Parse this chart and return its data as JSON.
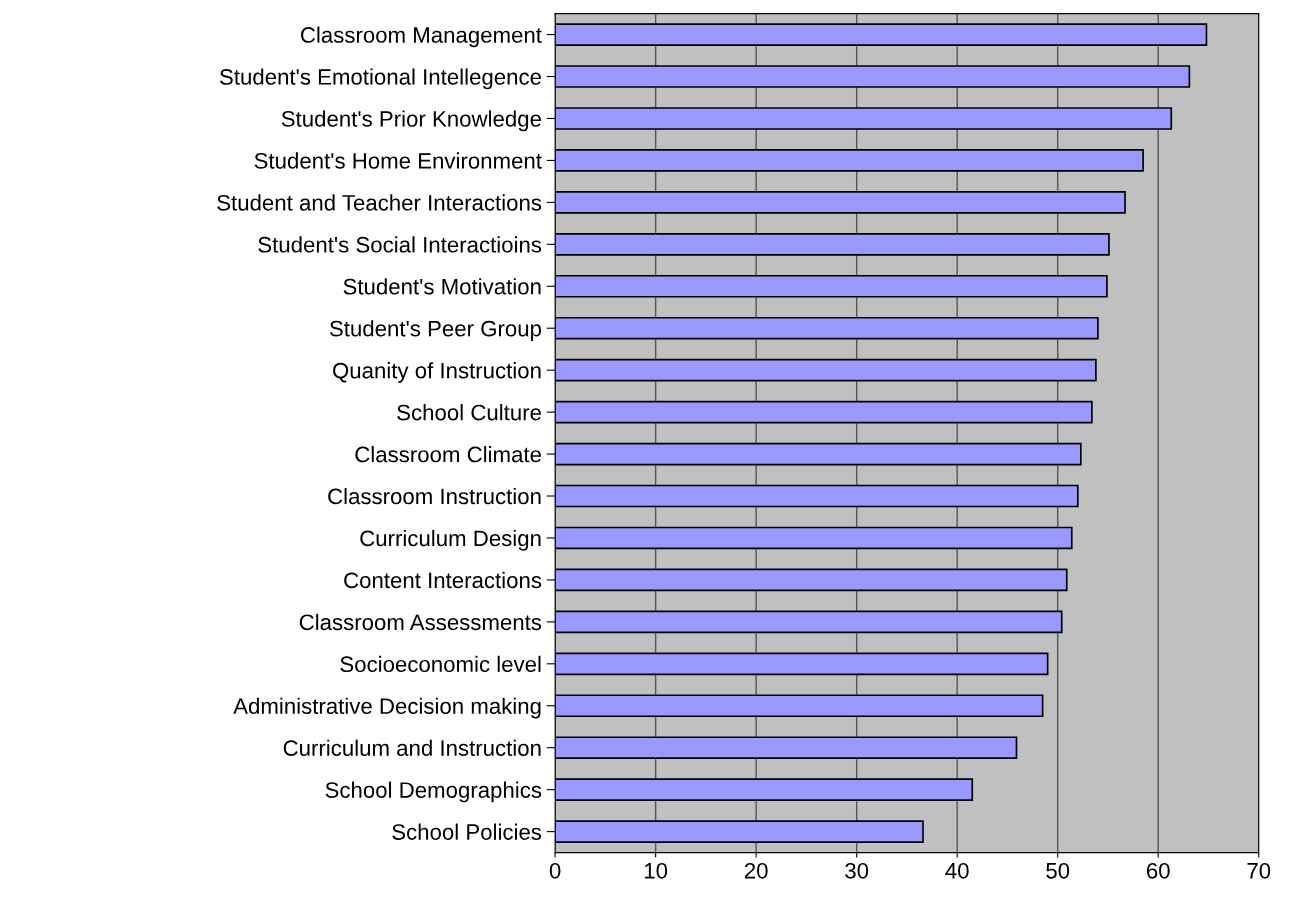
{
  "chart_data": {
    "type": "bar",
    "orientation": "horizontal",
    "categories": [
      "Classroom Management",
      "Student's Emotional Intellegence",
      "Student's Prior Knowledge",
      "Student's Home Environment",
      "Student and Teacher Interactions",
      "Student's Social Interactioins",
      "Student's Motivation",
      "Student's Peer Group",
      "Quanity of Instruction",
      "School Culture",
      "Classroom Climate",
      "Classroom Instruction",
      "Curriculum Design",
      "Content Interactions",
      "Classroom Assessments",
      "Socioeconomic level",
      "Administrative Decision making",
      "Curriculum and Instruction",
      "School Demographics",
      "School Policies"
    ],
    "values": [
      64.8,
      63.1,
      61.3,
      58.5,
      56.7,
      55.1,
      54.9,
      54.0,
      53.8,
      53.4,
      52.3,
      52.0,
      51.4,
      50.9,
      50.4,
      49.0,
      48.5,
      45.9,
      41.5,
      36.6
    ],
    "color": "#9999ff",
    "xlim": [
      0,
      70
    ],
    "xticks": [
      0,
      10,
      20,
      30,
      40,
      50,
      60,
      70
    ],
    "grid": "x"
  }
}
